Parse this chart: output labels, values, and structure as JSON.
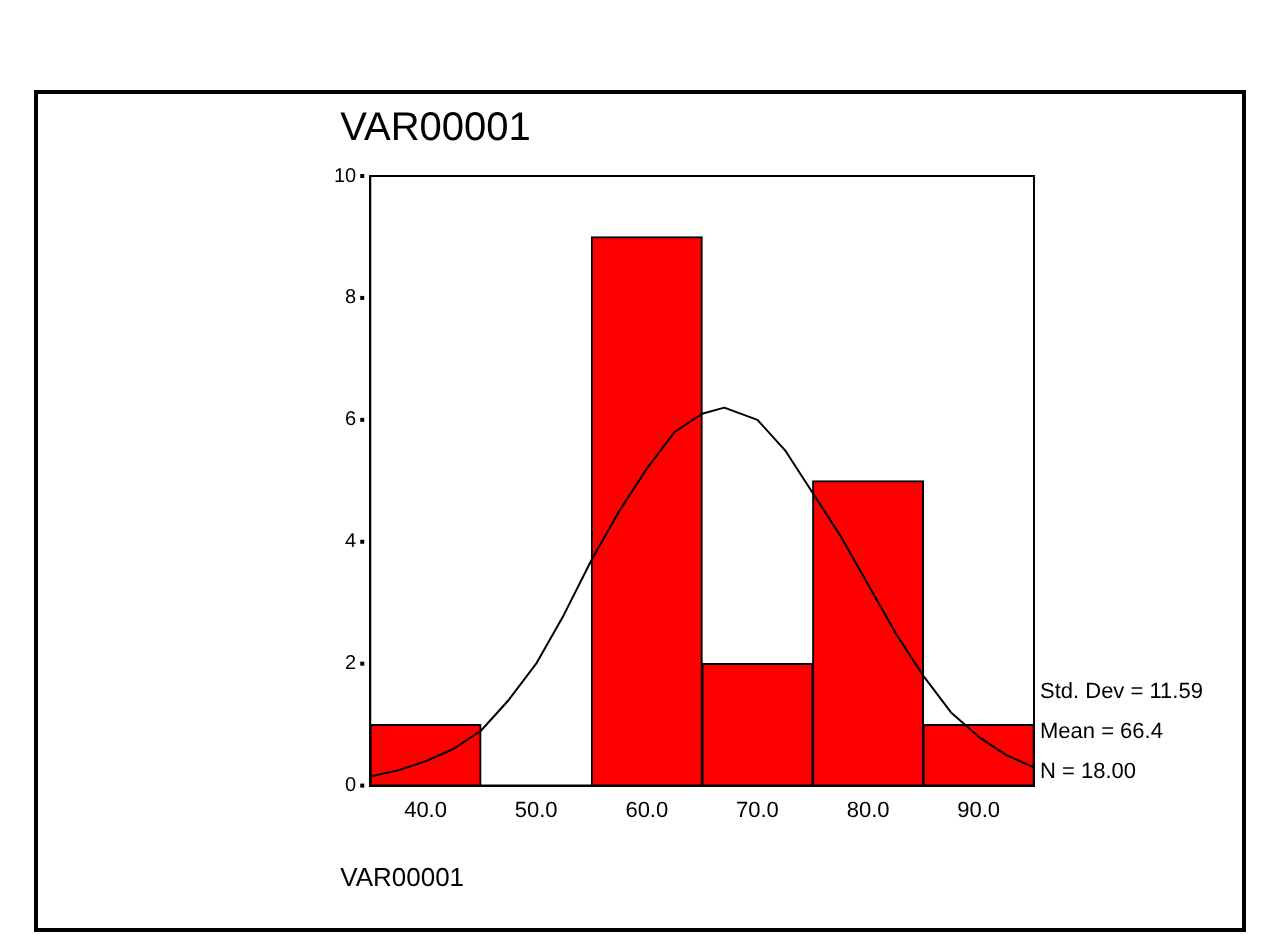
{
  "chart_data": {
    "type": "histogram",
    "title": "VAR00001",
    "xlabel": "VAR00001",
    "bins": [
      35,
      45,
      55,
      65,
      75,
      85,
      95
    ],
    "values": [
      1,
      0,
      9,
      2,
      5,
      1
    ],
    "color": "#ff0000",
    "series": [
      {
        "type": "line",
        "color": "#000000",
        "x": [
          35,
          37.5,
          40,
          42.5,
          45,
          47.5,
          50,
          52.5,
          55,
          57.5,
          60,
          62.5,
          65,
          67,
          70,
          72.5,
          75,
          77.5,
          80,
          82.5,
          85,
          87.5,
          90,
          92.5,
          95
        ],
        "values": [
          0.15,
          0.25,
          0.4,
          0.6,
          0.9,
          1.4,
          2.0,
          2.8,
          3.7,
          4.5,
          5.2,
          5.8,
          6.1,
          6.2,
          6.0,
          5.5,
          4.8,
          4.1,
          3.3,
          2.5,
          1.8,
          1.2,
          0.8,
          0.5,
          0.3
        ]
      }
    ],
    "xlim": [
      35,
      95
    ],
    "xticks": [
      {
        "value": 40,
        "label": "40.0"
      },
      {
        "value": 50,
        "label": "50.0"
      },
      {
        "value": 60,
        "label": "60.0"
      },
      {
        "value": 70,
        "label": "70.0"
      },
      {
        "value": 80,
        "label": "80.0"
      },
      {
        "value": 90,
        "label": "90.0"
      }
    ],
    "ylim": [
      0,
      10
    ],
    "yticks": [
      0,
      2,
      4,
      6,
      8,
      10
    ],
    "grid": false,
    "legend": false,
    "annotations": [
      "Std. Dev = 11.59",
      "Mean = 66.4",
      "N = 18.00"
    ]
  }
}
